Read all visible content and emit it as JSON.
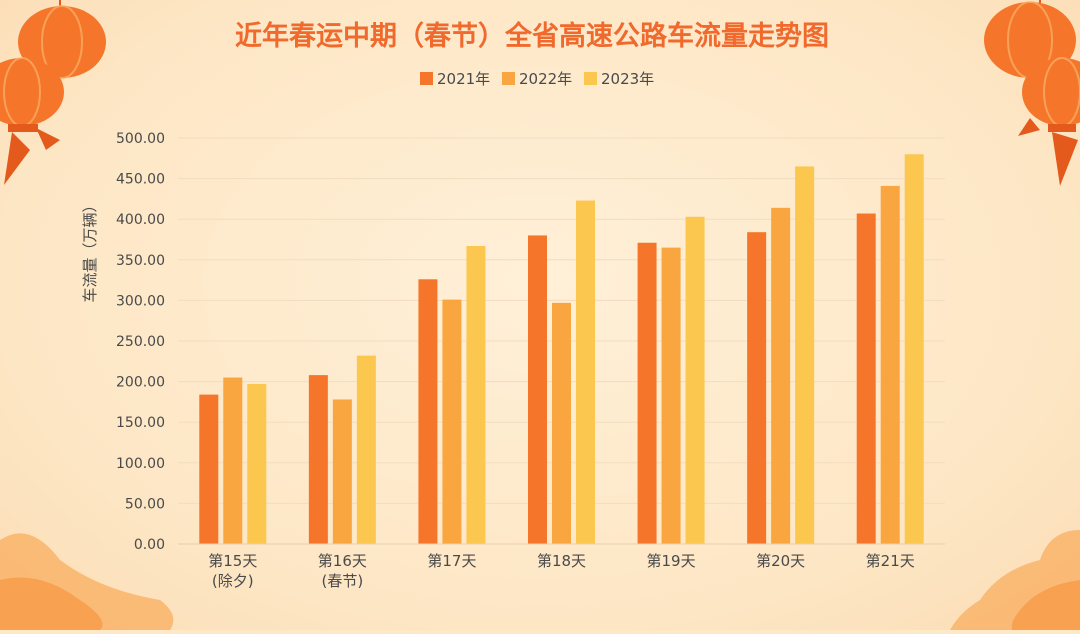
{
  "chart_data": {
    "type": "bar",
    "title": "近年春运中期（春节）全省高速公路车流量走势图",
    "ylabel": "车流量（万辆）",
    "xlabel": "",
    "ylim": [
      0,
      500
    ],
    "yticks": [
      "0.00",
      "50.00",
      "100.00",
      "150.00",
      "200.00",
      "250.00",
      "300.00",
      "350.00",
      "400.00",
      "450.00",
      "500.00"
    ],
    "categories": [
      [
        "第15天",
        "(除夕)"
      ],
      [
        "第16天",
        "(春节)"
      ],
      [
        "第17天"
      ],
      [
        "第18天"
      ],
      [
        "第19天"
      ],
      [
        "第20天"
      ],
      [
        "第21天"
      ]
    ],
    "series": [
      {
        "name": "2021年",
        "color": "#f5762b",
        "values": [
          184,
          208,
          326,
          380,
          371,
          384,
          407
        ]
      },
      {
        "name": "2022年",
        "color": "#f9a640",
        "values": [
          205,
          178,
          301,
          297,
          365,
          414,
          441
        ]
      },
      {
        "name": "2023年",
        "color": "#fcc74f",
        "values": [
          197,
          232,
          367,
          423,
          403,
          465,
          480
        ]
      }
    ],
    "grid": true,
    "legend_position": "top-center"
  },
  "colors": {
    "title": "#f06a2e",
    "axis_text": "#4a4a4a",
    "grid": "#f3dcc0",
    "lantern": "#f5762b",
    "lantern_dark": "#e35a1c",
    "cloud": "#f9b46a"
  }
}
